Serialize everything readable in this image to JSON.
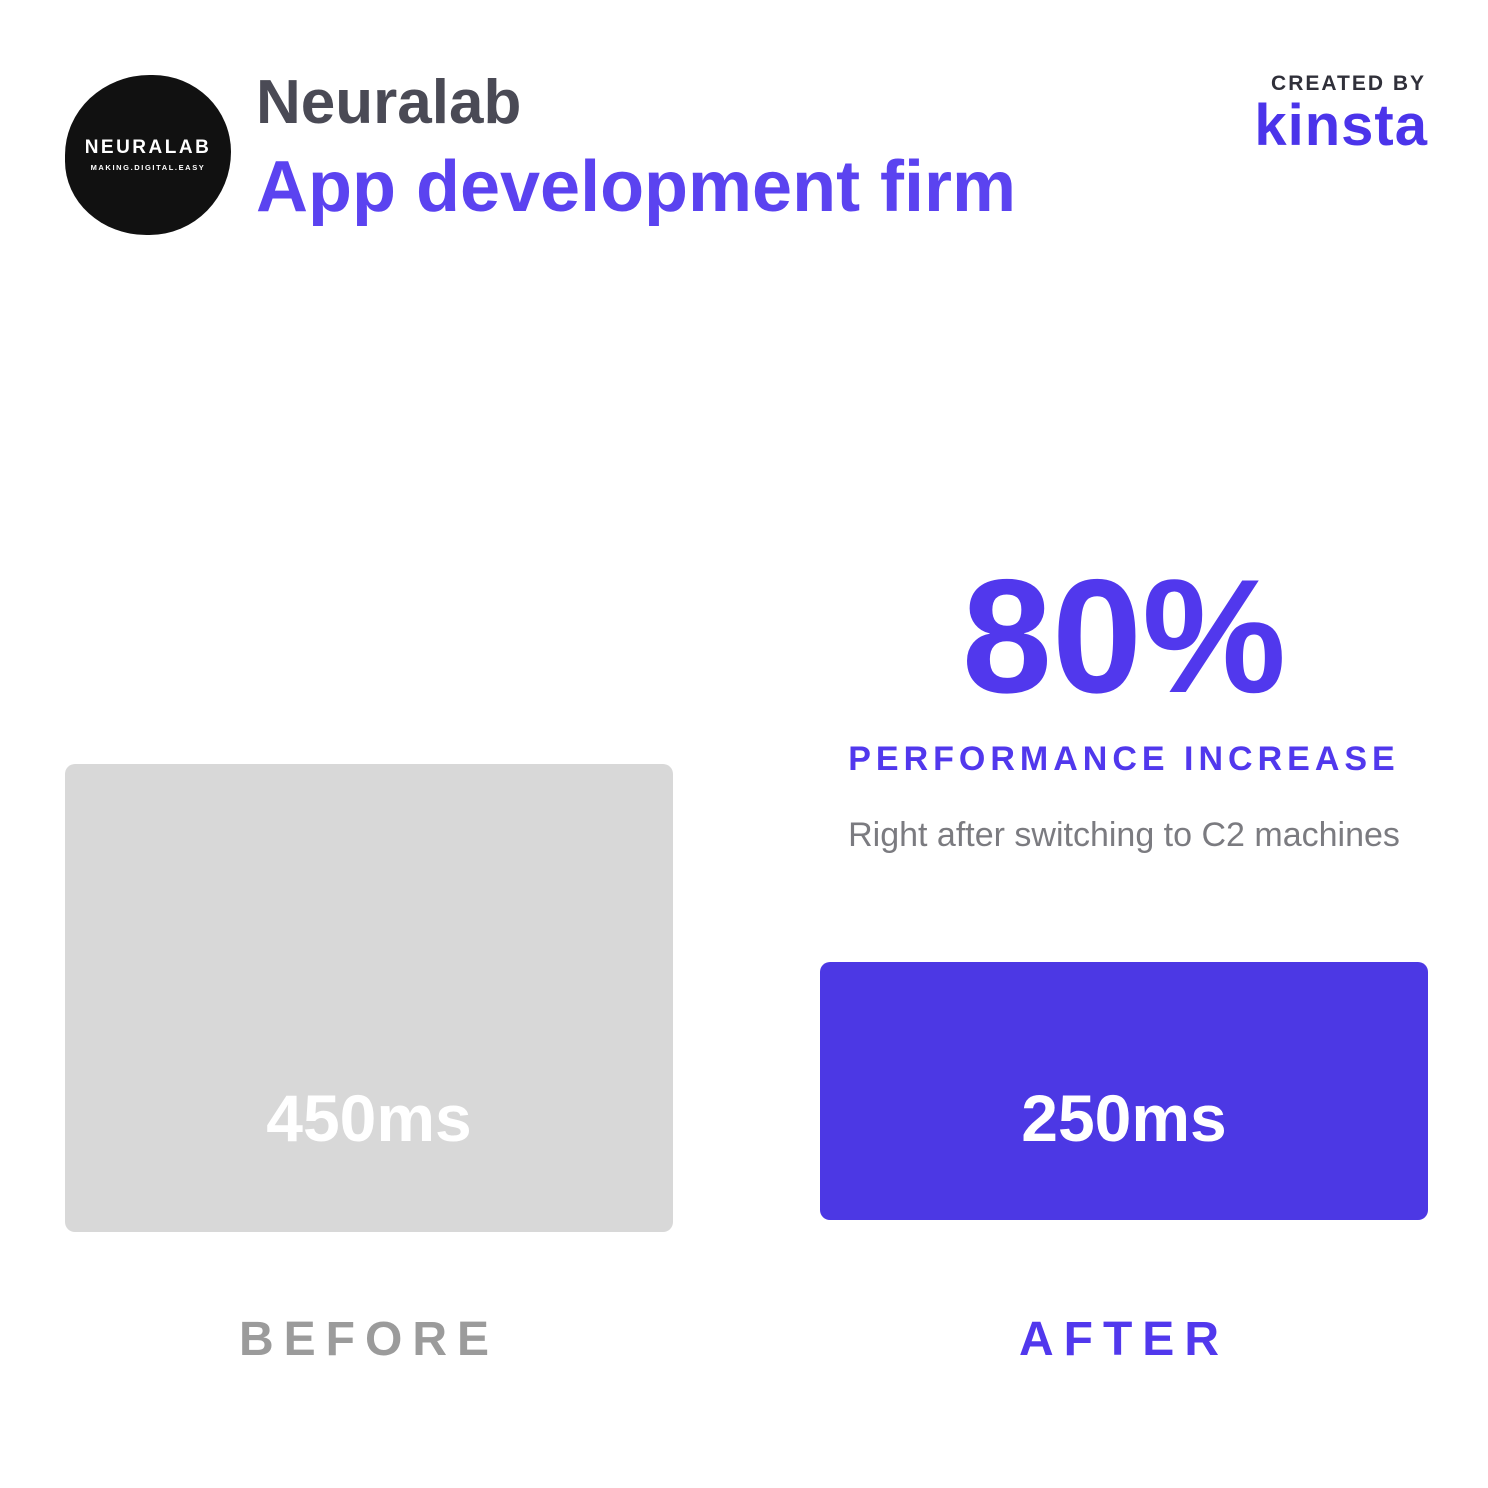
{
  "header": {
    "logo_line1": "NEURALAB",
    "logo_line2": "MAKING.DIGITAL.EASY",
    "company_name": "Neuralab",
    "company_type": "App development firm",
    "created_by_label": "CREATED BY",
    "brand_name": "kinsta"
  },
  "stat": {
    "value": "80%",
    "label": "PERFORMANCE INCREASE",
    "description": "Right after switching to C2 machines"
  },
  "comparison": {
    "before_value": "450ms",
    "before_label": "BEFORE",
    "after_value": "250ms",
    "after_label": "AFTER"
  },
  "colors": {
    "accent_purple": "#5138ed",
    "header_purple": "#5b43f0",
    "bar_after_purple": "#4c38e4",
    "bar_before_gray": "#d8d8d8",
    "heading_dark": "#4a4a55",
    "created_by_dark": "#30303a",
    "before_label_gray": "#9b9b9b",
    "description_gray": "#7b7b80",
    "logo_black": "#111111",
    "value_text_white": "#ffffff"
  },
  "chart_data": {
    "type": "bar",
    "categories": [
      "BEFORE",
      "AFTER"
    ],
    "values": [
      450,
      250
    ],
    "unit": "ms",
    "data_labels": [
      "450ms",
      "250ms"
    ],
    "bar_colors": [
      "#d8d8d8",
      "#4c38e4"
    ],
    "annotation_value": "80%",
    "annotation_label": "PERFORMANCE INCREASE",
    "annotation_note": "Right after switching to C2 machines",
    "orientation": "vertical",
    "bars_bottom_aligned": true,
    "grid": false,
    "legend": false
  }
}
